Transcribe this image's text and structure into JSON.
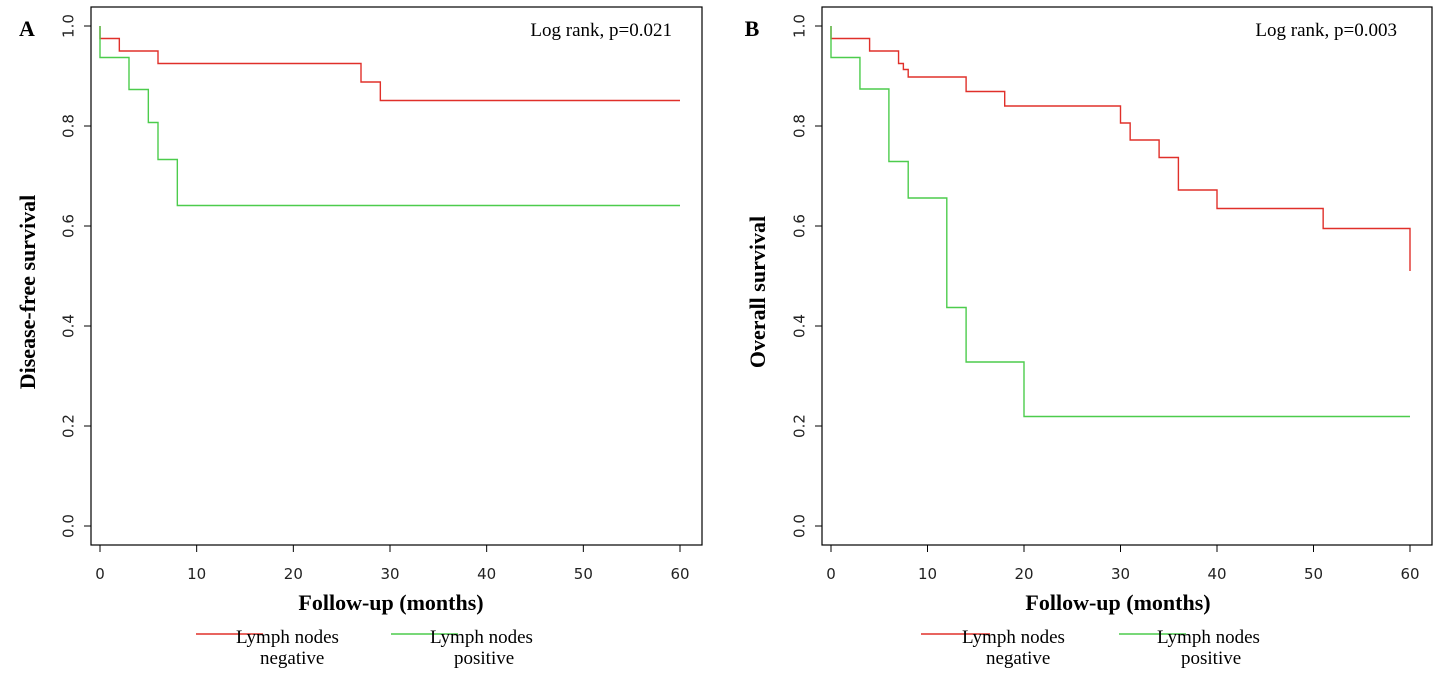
{
  "chart_data": [
    {
      "type": "line",
      "step": true,
      "panel_label": "A",
      "annotation": "Log rank, p=0.021",
      "xlabel": "Follow-up (months)",
      "ylabel": "Disease-free survival",
      "xlim": [
        0,
        60
      ],
      "ylim": [
        0,
        1
      ],
      "xticks": [
        "0",
        "10",
        "20",
        "30",
        "40",
        "50",
        "60"
      ],
      "yticks": [
        "0.0",
        "0.2",
        "0.4",
        "0.6",
        "0.8",
        "1.0"
      ],
      "series": [
        {
          "name": "Lymph nodes negative",
          "legend_lines": [
            "Lymph nodes",
            "negative"
          ],
          "color": "#e0302a",
          "x": [
            0,
            2,
            6,
            27,
            29,
            60
          ],
          "y": [
            0.975,
            0.95,
            0.925,
            0.888,
            0.851,
            0.851
          ]
        },
        {
          "name": "Lymph nodes positive",
          "legend_lines": [
            "Lymph nodes",
            "positive"
          ],
          "color": "#4ccc4c",
          "x": [
            0,
            3,
            5,
            6,
            8,
            60
          ],
          "y": [
            0.937,
            0.873,
            0.807,
            0.733,
            0.641,
            0.641
          ]
        }
      ]
    },
    {
      "type": "line",
      "step": true,
      "panel_label": "B",
      "annotation": "Log rank, p=0.003",
      "xlabel": "Follow-up (months)",
      "ylabel": "Overall survival",
      "xlim": [
        0,
        60
      ],
      "ylim": [
        0,
        1
      ],
      "xticks": [
        "0",
        "10",
        "20",
        "30",
        "40",
        "50",
        "60"
      ],
      "yticks": [
        "0.0",
        "0.2",
        "0.4",
        "0.6",
        "0.8",
        "1.0"
      ],
      "series": [
        {
          "name": "Lymph nodes negative",
          "legend_lines": [
            "Lymph nodes",
            "negative"
          ],
          "color": "#e0302a",
          "x": [
            0,
            4,
            7,
            7.5,
            8,
            14,
            18,
            30,
            31,
            34,
            36,
            40,
            51,
            60,
            60
          ],
          "y": [
            0.975,
            0.95,
            0.925,
            0.913,
            0.898,
            0.869,
            0.84,
            0.806,
            0.772,
            0.737,
            0.672,
            0.635,
            0.595,
            0.595,
            0.51
          ]
        },
        {
          "name": "Lymph nodes positive",
          "legend_lines": [
            "Lymph nodes",
            "positive"
          ],
          "color": "#4ccc4c",
          "x": [
            0,
            3,
            6,
            8,
            12,
            14,
            20,
            60
          ],
          "y": [
            0.937,
            0.874,
            0.729,
            0.656,
            0.437,
            0.328,
            0.219,
            0.219
          ]
        }
      ]
    }
  ]
}
